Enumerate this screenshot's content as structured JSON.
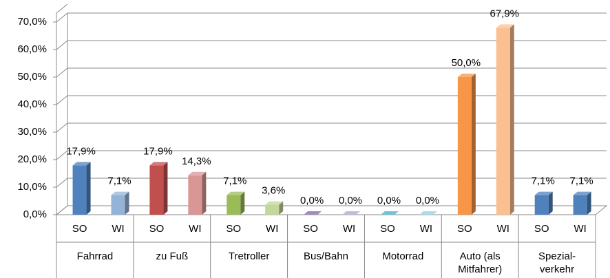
{
  "chart_data": {
    "type": "bar",
    "categories": [
      [
        "Fahrrad"
      ],
      [
        "zu Fuß"
      ],
      [
        "Tretroller"
      ],
      [
        "Bus/Bahn"
      ],
      [
        "Motorrad"
      ],
      [
        "Auto (als",
        "Mitfahrer)"
      ],
      [
        "Spezial-",
        "verkehr"
      ]
    ],
    "series": [
      {
        "name": "SO",
        "values": [
          17.9,
          17.9,
          7.1,
          0,
          0,
          50,
          7.1
        ],
        "value_labels": [
          "17,9%",
          "17,9%",
          "7,1%",
          "0,0%",
          "0,0%",
          "50,0%",
          "7,1%"
        ],
        "colors": [
          "#4f81bd",
          "#c0504d",
          "#9bbb59",
          "#8064a2",
          "#4bacc6",
          "#f79646",
          "#4f81bd"
        ]
      },
      {
        "name": "WI",
        "values": [
          7.1,
          14.3,
          3.6,
          0,
          0,
          67.9,
          7.1
        ],
        "value_labels": [
          "7,1%",
          "14,3%",
          "3,6%",
          "0,0%",
          "0,0%",
          "67,9%",
          "7,1%"
        ],
        "colors": [
          "#95b3d7",
          "#d99694",
          "#c3d69b",
          "#b3a2c7",
          "#93cddd",
          "#fac090",
          "#4f81bd"
        ]
      }
    ],
    "ylim": [
      0,
      70
    ],
    "yticks": [
      {
        "value": 0,
        "label": "0,0%"
      },
      {
        "value": 10,
        "label": "10,0%"
      },
      {
        "value": 20,
        "label": "20,0%"
      },
      {
        "value": 30,
        "label": "30,0%"
      },
      {
        "value": 40,
        "label": "40,0%"
      },
      {
        "value": 50,
        "label": "50,0%"
      },
      {
        "value": 60,
        "label": "60,0%"
      },
      {
        "value": 70,
        "label": "70,0%"
      }
    ],
    "grid": true
  }
}
